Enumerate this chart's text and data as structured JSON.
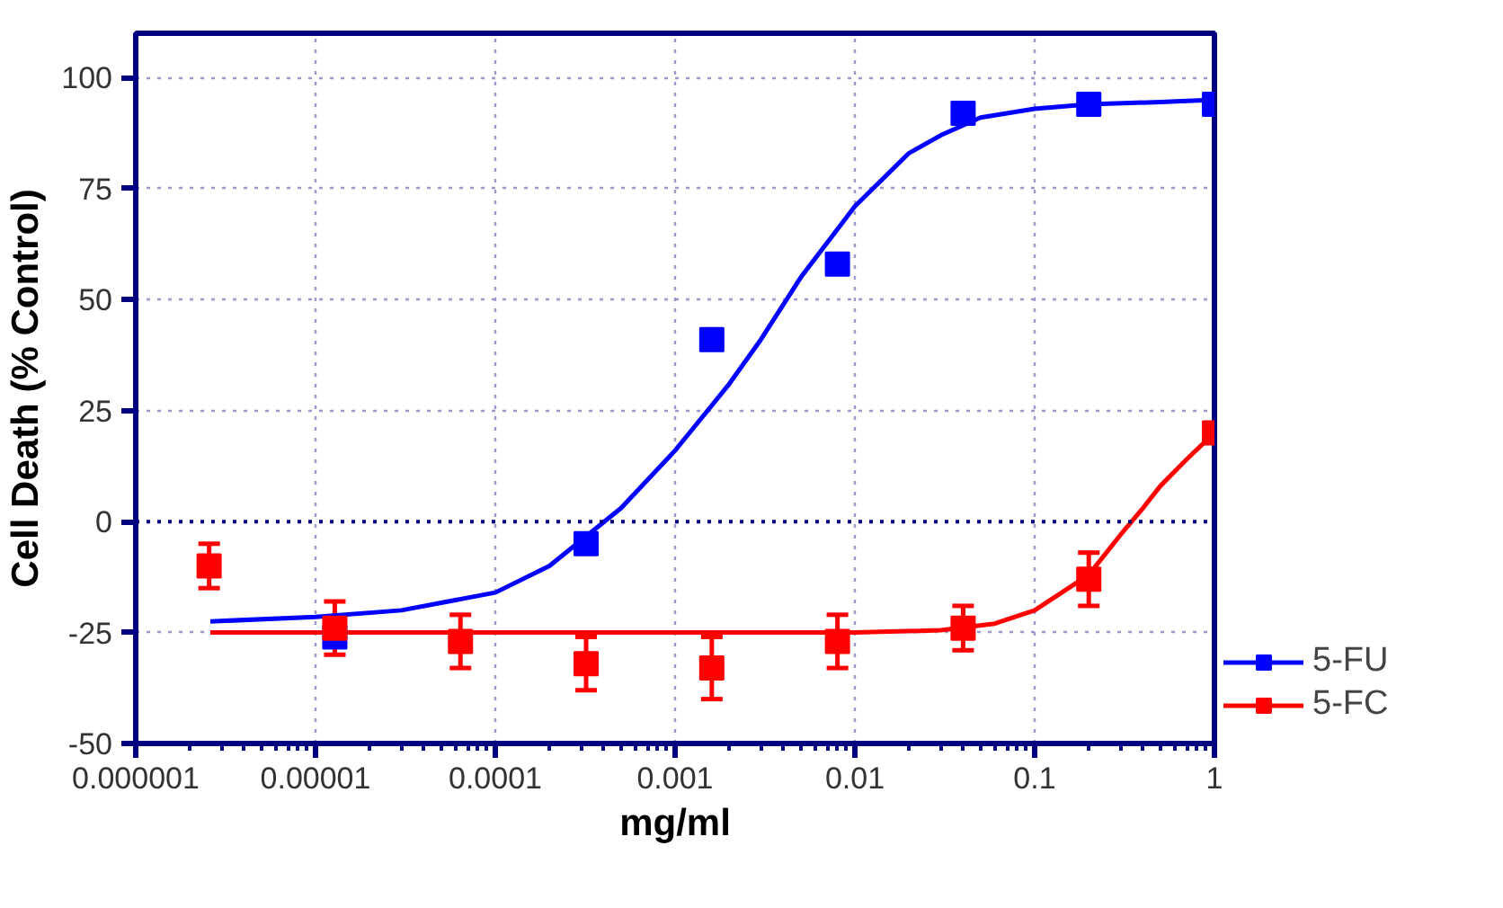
{
  "chart_data": {
    "type": "scatter",
    "xlabel": "mg/ml",
    "ylabel": "Cell Death (% Control)",
    "log": "x",
    "xlim": [
      1e-06,
      1
    ],
    "xticks": [
      {
        "value": 1e-06,
        "label": "0.000001"
      },
      {
        "value": 1e-05,
        "label": "0.00001"
      },
      {
        "value": 0.0001,
        "label": "0.0001"
      },
      {
        "value": 0.001,
        "label": "0.001"
      },
      {
        "value": 0.01,
        "label": "0.01"
      },
      {
        "value": 0.1,
        "label": "0.1"
      },
      1
    ],
    "ylim": [
      -50,
      110
    ],
    "yticks": [
      -50,
      -25,
      0,
      25,
      50,
      75,
      100
    ],
    "grid": true,
    "legend": "right",
    "marker": "square",
    "ref_lines": [
      {
        "axis": "y",
        "value": 0,
        "color": "#000080",
        "line_style": "dotted"
      }
    ],
    "series": [
      {
        "name": "5-FU",
        "color": "#0000ff",
        "x": [
          1.28e-05,
          0.00032,
          0.0016,
          0.008,
          0.04,
          0.2,
          1
        ],
        "values": [
          -26,
          -5,
          41,
          58,
          92,
          94,
          94
        ]
      },
      {
        "name": "5-FC",
        "color": "#ff0000",
        "x": [
          2.56e-06,
          1.28e-05,
          6.4e-05,
          0.00032,
          0.0016,
          0.008,
          0.04,
          0.2,
          1
        ],
        "values": [
          -10,
          -24,
          -27,
          -32,
          -33,
          -27,
          -24,
          -13,
          20
        ],
        "errors": [
          5,
          6,
          6,
          6,
          7,
          6,
          5,
          6,
          null
        ]
      },
      {
        "type": "line",
        "marker": "none",
        "color": "#0000ff",
        "x": [
          2.6e-06,
          1e-05,
          3e-05,
          0.0001,
          0.0002,
          0.0005,
          0.001,
          0.002,
          0.003,
          0.005,
          0.01,
          0.02,
          0.03,
          0.05,
          0.1,
          0.2,
          0.5,
          1
        ],
        "values": [
          -22.5,
          -21.5,
          -20,
          -16,
          -10,
          3,
          16,
          31,
          41,
          55,
          71,
          83,
          87,
          91,
          93,
          94,
          94.5,
          95
        ]
      },
      {
        "type": "line",
        "marker": "none",
        "color": "#ff0000",
        "x": [
          2.6e-06,
          0.001,
          0.01,
          0.03,
          0.06,
          0.1,
          0.2,
          0.3,
          0.4,
          0.5,
          0.7,
          1
        ],
        "values": [
          -25,
          -25,
          -25,
          -24.5,
          -23,
          -20,
          -12,
          -3,
          3,
          8,
          14,
          20
        ]
      }
    ]
  }
}
